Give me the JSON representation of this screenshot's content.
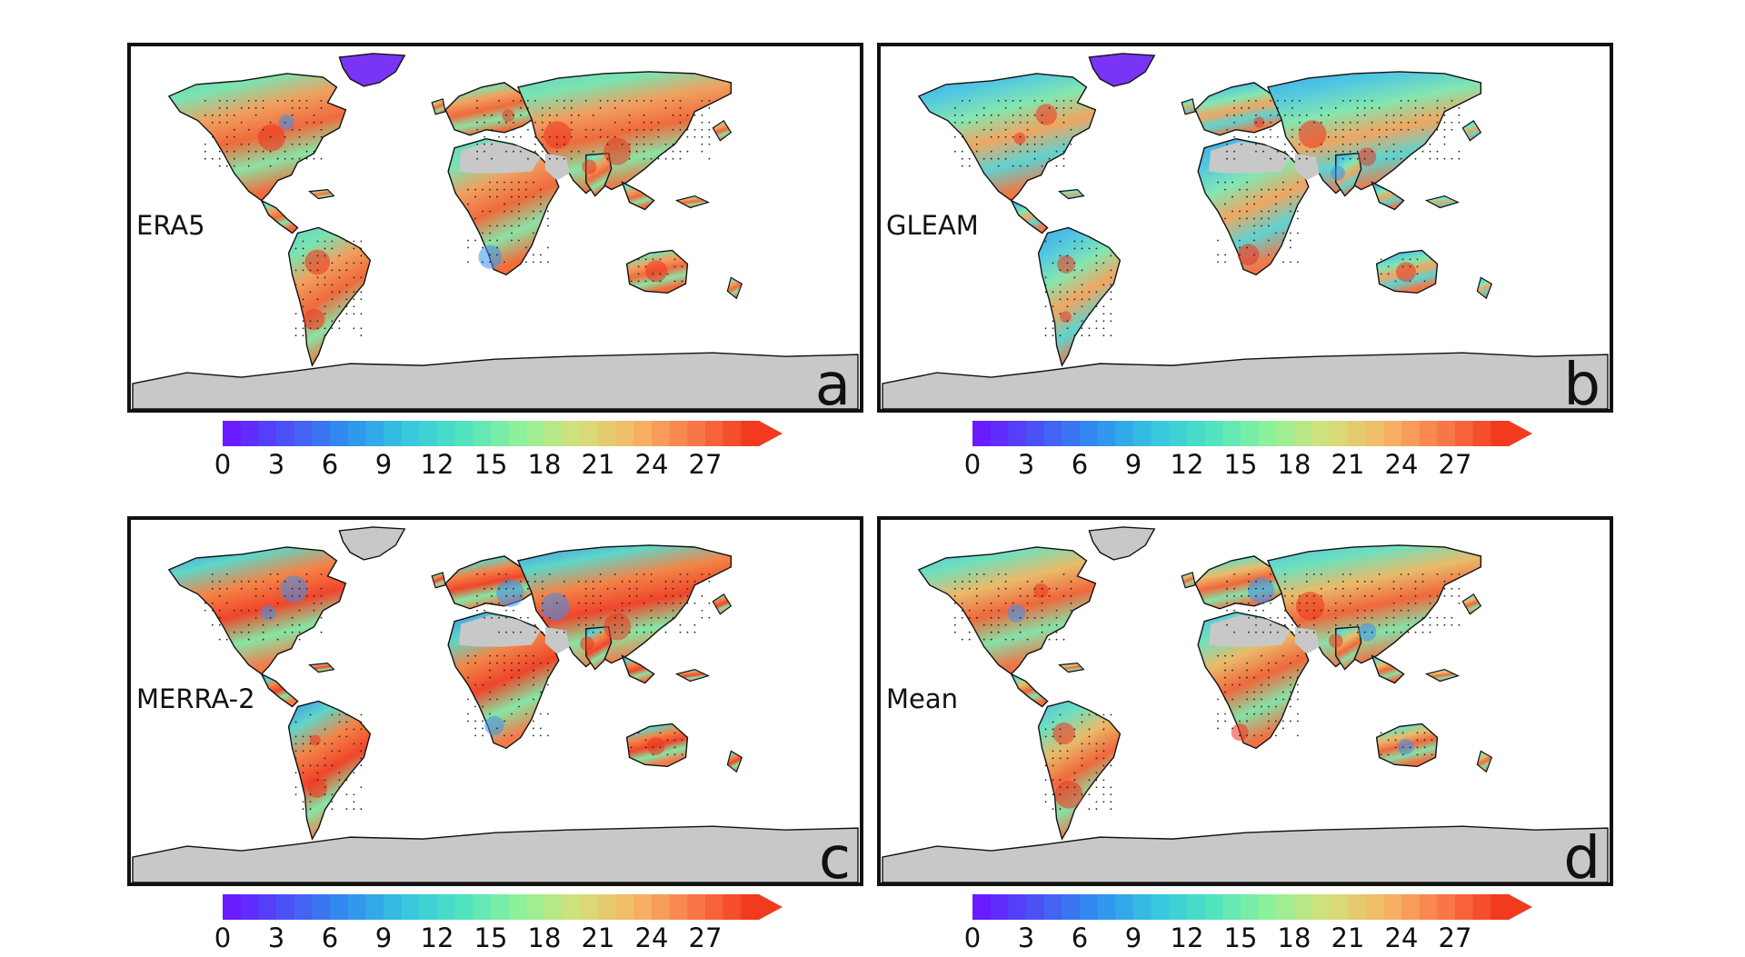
{
  "panels": [
    {
      "id": "a",
      "dataset": "ERA5",
      "letter": "a"
    },
    {
      "id": "b",
      "dataset": "GLEAM",
      "letter": "b"
    },
    {
      "id": "c",
      "dataset": "MERRA-2",
      "letter": "c"
    },
    {
      "id": "d",
      "dataset": "Mean",
      "letter": "d"
    }
  ],
  "colorbar": {
    "ticks": [
      "0",
      "3",
      "6",
      "9",
      "12",
      "15",
      "18",
      "21",
      "24",
      "27"
    ],
    "min": 0,
    "max": 30,
    "extend": "max",
    "colors": [
      "#6a1bff",
      "#4a55f5",
      "#2f8ff0",
      "#36c5e0",
      "#4fe3c0",
      "#8ef29a",
      "#d4e07a",
      "#f5b766",
      "#fa7a4a",
      "#f23a1e"
    ]
  },
  "colors": {
    "land_no_data": "#c8c8c8",
    "ocean": "#ffffff",
    "frame": "#111111"
  }
}
